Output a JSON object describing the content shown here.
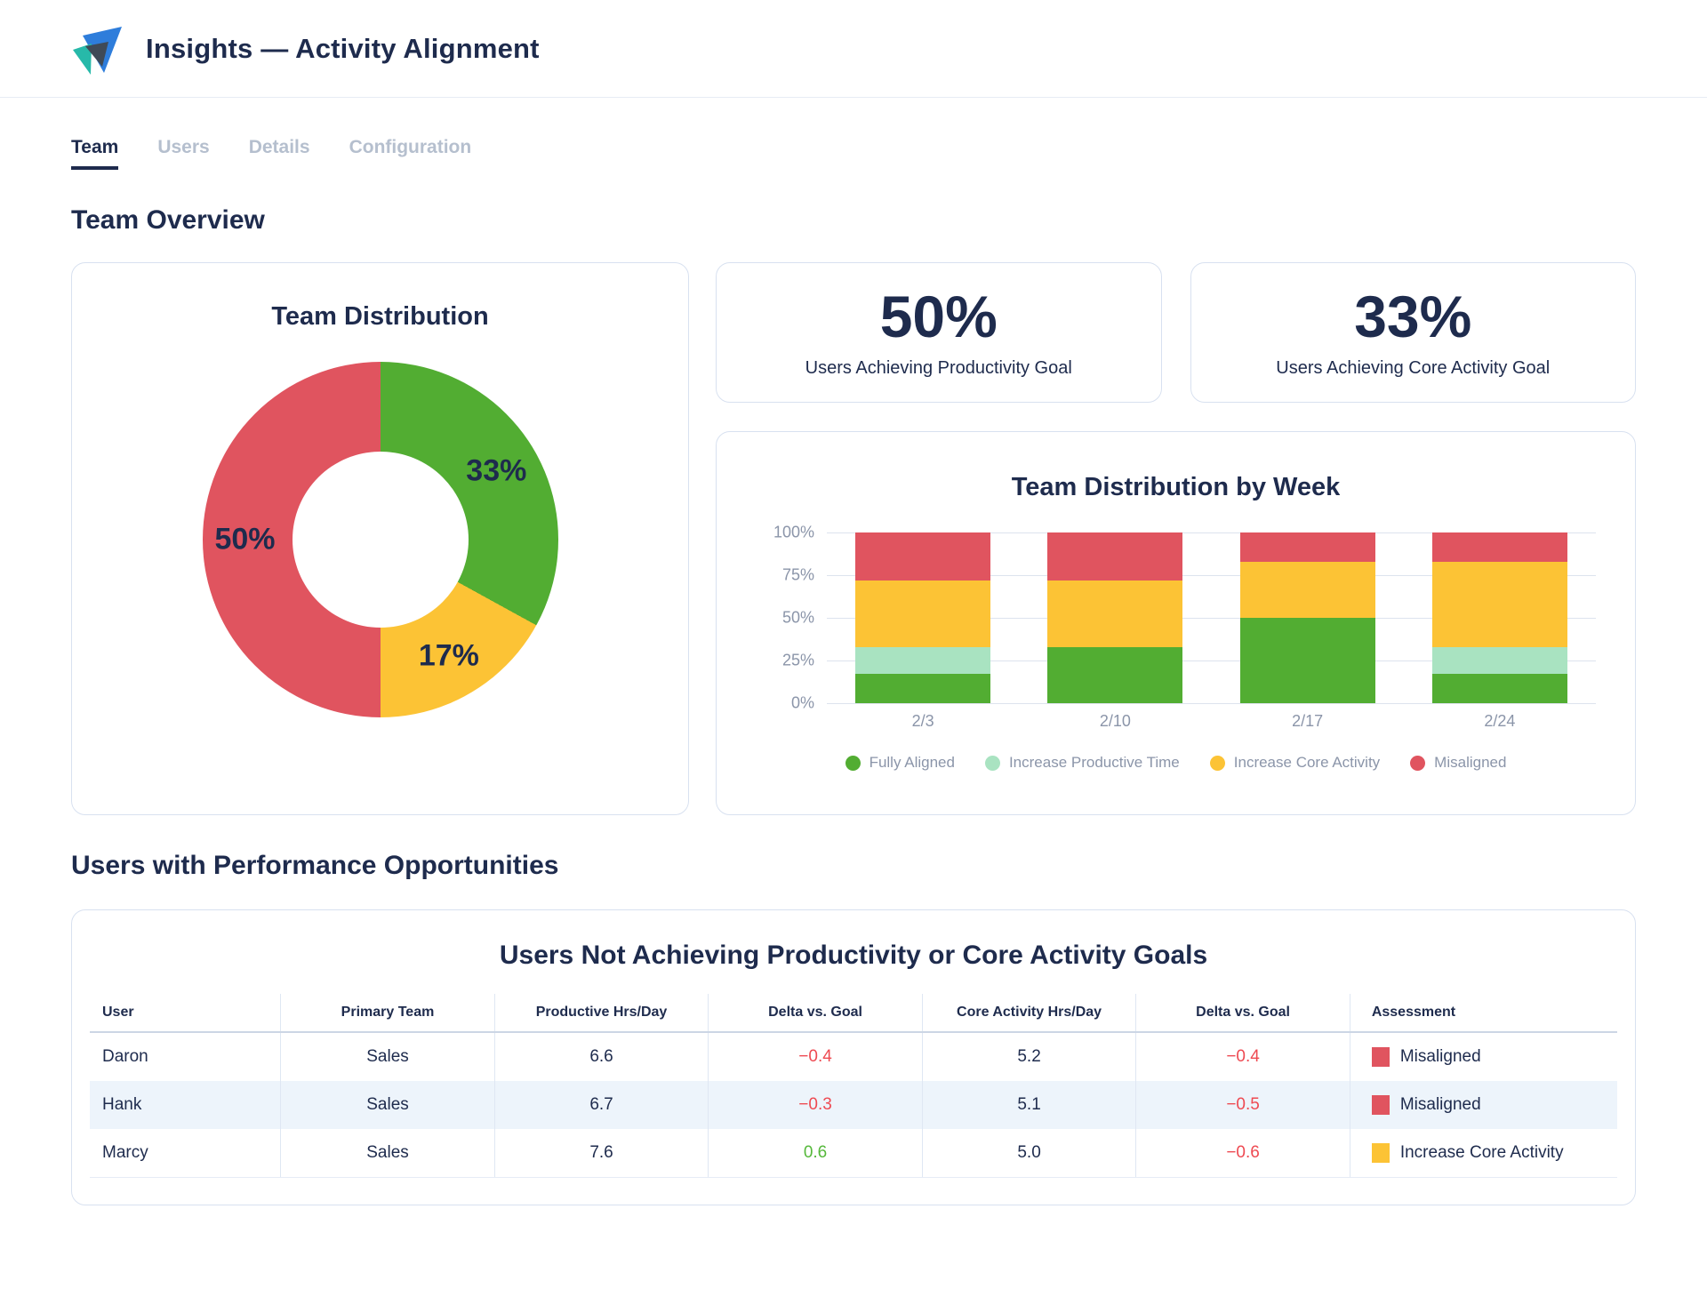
{
  "header": {
    "title": "Insights — Activity Alignment"
  },
  "tabs": [
    {
      "label": "Team",
      "active": true
    },
    {
      "label": "Users",
      "active": false
    },
    {
      "label": "Details",
      "active": false
    },
    {
      "label": "Configuration",
      "active": false
    }
  ],
  "sections": {
    "team_overview": "Team Overview",
    "performance": "Users with Performance Opportunities"
  },
  "kpis": [
    {
      "value": "50%",
      "label": "Users Achieving Productivity Goal"
    },
    {
      "value": "33%",
      "label": "Users Achieving Core Activity Goal"
    }
  ],
  "colors": {
    "fully_aligned": "#52ad32",
    "increase_productive_time": "#a9e3c1",
    "increase_core_activity": "#fcc335",
    "misaligned": "#e0545f",
    "navy": "#1e2b4d",
    "negative_text": "#ee4a52",
    "positive_text": "#55b83a"
  },
  "chart_data": [
    {
      "type": "pie",
      "title": "Team Distribution",
      "donut_hole": 0.5,
      "slices": [
        {
          "label": "Fully Aligned",
          "value": 33,
          "display": "33%",
          "color_key": "fully_aligned"
        },
        {
          "label": "Increase Core Activity",
          "value": 17,
          "display": "17%",
          "color_key": "increase_core_activity"
        },
        {
          "label": "Misaligned",
          "value": 50,
          "display": "50%",
          "color_key": "misaligned"
        }
      ]
    },
    {
      "type": "bar",
      "stacked": true,
      "percent": true,
      "title": "Team Distribution by Week",
      "categories": [
        "2/3",
        "2/10",
        "2/17",
        "2/24"
      ],
      "series": [
        {
          "name": "Fully Aligned",
          "color_key": "fully_aligned",
          "values": [
            17,
            33,
            50,
            17
          ]
        },
        {
          "name": "Increase Productive Time",
          "color_key": "increase_productive_time",
          "values": [
            16,
            0,
            0,
            16
          ]
        },
        {
          "name": "Increase Core Activity",
          "color_key": "increase_core_activity",
          "values": [
            39,
            39,
            33,
            50
          ]
        },
        {
          "name": "Misaligned",
          "color_key": "misaligned",
          "values": [
            28,
            28,
            17,
            17
          ]
        }
      ],
      "yticks": [
        {
          "label": "100%",
          "value": 100
        },
        {
          "label": "75%",
          "value": 75
        },
        {
          "label": "50%",
          "value": 50
        },
        {
          "label": "25%",
          "value": 25
        },
        {
          "label": "0%",
          "value": 0
        }
      ],
      "ylim": [
        0,
        100
      ],
      "grid": true,
      "legend_position": "bottom"
    }
  ],
  "table": {
    "title": "Users Not Achieving Productivity or Core Activity Goals",
    "columns": [
      "User",
      "Primary Team",
      "Productive Hrs/Day",
      "Delta vs. Goal",
      "Core Activity Hrs/Day",
      "Delta vs. Goal",
      "Assessment"
    ],
    "rows": [
      {
        "user": "Daron",
        "team": "Sales",
        "productive": "6.6",
        "delta1": "−0.4",
        "delta1_sign": "negative",
        "core": "5.2",
        "delta2": "−0.4",
        "delta2_sign": "negative",
        "assessment": "Misaligned",
        "assessment_key": "misaligned",
        "highlight": false
      },
      {
        "user": "Hank",
        "team": "Sales",
        "productive": "6.7",
        "delta1": "−0.3",
        "delta1_sign": "negative",
        "core": "5.1",
        "delta2": "−0.5",
        "delta2_sign": "negative",
        "assessment": "Misaligned",
        "assessment_key": "misaligned",
        "highlight": true
      },
      {
        "user": "Marcy",
        "team": "Sales",
        "productive": "7.6",
        "delta1": "0.6",
        "delta1_sign": "positive",
        "core": "5.0",
        "delta2": "−0.6",
        "delta2_sign": "negative",
        "assessment": "Increase Core Activity",
        "assessment_key": "increase_core_activity",
        "highlight": false
      }
    ]
  }
}
